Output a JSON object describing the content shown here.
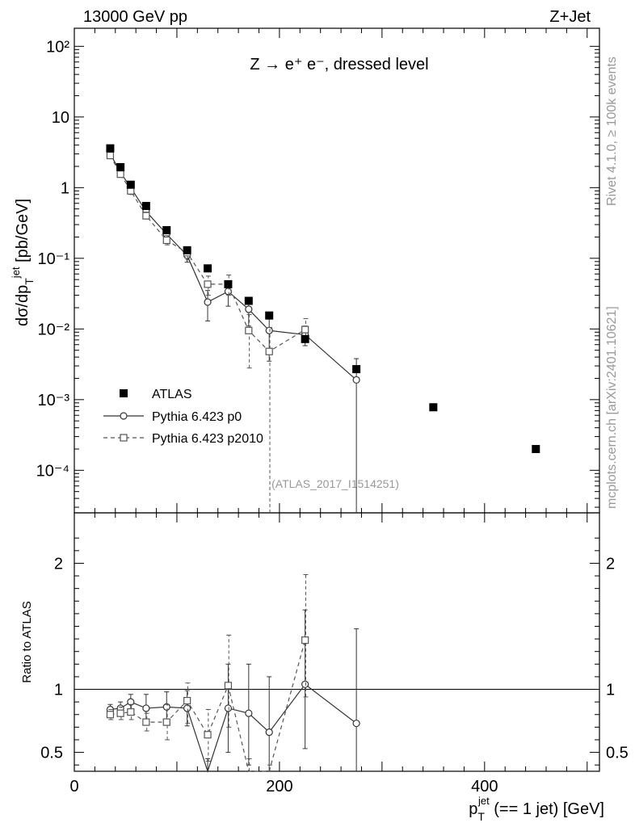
{
  "header": {
    "energy_label": "13000 GeV pp",
    "process_label": "Z+Jet",
    "title": "Z → e⁺ e⁻, dressed level",
    "analysis_id": "(ATLAS_2017_I1514251)",
    "side_label_top": "Rivet 4.1.0, ≥ 100k events",
    "side_label_bottom": "mcplots.cern.ch [arXiv:2401.10621]"
  },
  "chart_data": [
    {
      "type": "scatter",
      "panel": "main",
      "yscale": "log",
      "ylabel": "dσ/dp_T^jet [pb/GeV]",
      "ylim": [
        2.5e-05,
        180
      ],
      "xlim": [
        0,
        512
      ],
      "yticks": [
        {
          "value": 100,
          "label": "10²"
        },
        {
          "value": 10,
          "label": "10"
        },
        {
          "value": 1,
          "label": "1"
        },
        {
          "value": 0.1,
          "label": "10⁻¹"
        },
        {
          "value": 0.01,
          "label": "10⁻²"
        },
        {
          "value": 0.001,
          "label": "10⁻³"
        },
        {
          "value": 0.0001,
          "label": "10⁻⁴"
        }
      ],
      "legend": {
        "position": "bottom-left",
        "entries": [
          "ATLAS",
          "Pythia 6.423 p0",
          "Pythia 6.423 p2010"
        ]
      },
      "series": [
        {
          "name": "ATLAS",
          "style": "filled-square",
          "x": [
            35,
            45,
            55,
            70,
            90,
            110,
            130,
            150,
            170,
            190,
            225,
            275,
            350,
            450
          ],
          "y": [
            3.6,
            1.95,
            1.1,
            0.55,
            0.25,
            0.13,
            0.072,
            0.043,
            0.025,
            0.0155,
            0.0072,
            0.0027,
            0.00078,
            0.0002
          ]
        },
        {
          "name": "Pythia 6.423 p0",
          "style": "open-circle-solid",
          "x": [
            35,
            45,
            55,
            70,
            90,
            110,
            130,
            150,
            170,
            190,
            225,
            275
          ],
          "y": [
            3.0,
            1.65,
            1.0,
            0.46,
            0.22,
            0.11,
            0.024,
            0.034,
            0.019,
            0.0095,
            0.0083,
            0.0019
          ],
          "err_low": [
            2.8,
            1.5,
            0.9,
            0.41,
            0.19,
            0.088,
            0.013,
            0.021,
            0.011,
            0.0035,
            0.0058,
            1e-06
          ],
          "err_high": [
            3.2,
            1.8,
            1.1,
            0.51,
            0.25,
            0.13,
            0.035,
            0.047,
            0.027,
            0.0155,
            0.011,
            0.0038
          ]
        },
        {
          "name": "Pythia 6.423 p2010",
          "style": "open-square-dashed",
          "x": [
            35,
            45,
            55,
            70,
            90,
            110,
            130,
            150,
            170,
            190,
            225
          ],
          "y": [
            2.85,
            1.55,
            0.9,
            0.4,
            0.18,
            0.12,
            0.043,
            0.043,
            0.0095,
            0.0048,
            0.0098
          ],
          "err_low": [
            2.65,
            1.4,
            0.8,
            0.36,
            0.155,
            0.095,
            0.03,
            0.03,
            0.0028,
            1e-06,
            0.0068
          ],
          "err_high": [
            3.05,
            1.7,
            1.0,
            0.45,
            0.21,
            0.145,
            0.056,
            0.058,
            0.016,
            0.0105,
            0.014
          ]
        }
      ]
    },
    {
      "type": "scatter",
      "panel": "ratio",
      "ylabel": "Ratio to ATLAS",
      "xlabel": "p_T^jet (== 1 jet) [GeV]",
      "xlim": [
        0,
        512
      ],
      "ylim": [
        0.35,
        2.4
      ],
      "xticks": [
        0,
        200,
        400
      ],
      "yticks": [
        0.5,
        1,
        2
      ],
      "reference_line": 1,
      "series": [
        {
          "name": "Pythia 6.423 p0",
          "style": "open-circle-solid",
          "x": [
            35,
            45,
            55,
            70,
            90,
            110,
            130,
            150,
            170,
            190,
            225,
            275
          ],
          "y": [
            0.84,
            0.85,
            0.9,
            0.85,
            0.86,
            0.85,
            0.33,
            0.85,
            0.81,
            0.66,
            1.04,
            0.73
          ],
          "err_low": [
            0.8,
            0.8,
            0.84,
            0.74,
            0.74,
            0.71,
            0.25,
            0.5,
            0.4,
            0.3,
            0.53,
            0.3
          ],
          "err_high": [
            0.88,
            0.9,
            0.96,
            0.96,
            0.98,
            0.99,
            0.45,
            1.2,
            1.2,
            1.1,
            1.63,
            1.48
          ]
        },
        {
          "name": "Pythia 6.423 p2010",
          "style": "open-square-dashed",
          "x": [
            35,
            45,
            55,
            70,
            90,
            110,
            130,
            150,
            170,
            190,
            225
          ],
          "y": [
            0.8,
            0.81,
            0.82,
            0.74,
            0.74,
            0.91,
            0.64,
            1.03,
            0.33,
            0.3,
            1.39
          ],
          "err_low": [
            0.76,
            0.76,
            0.76,
            0.67,
            0.6,
            0.73,
            0.43,
            0.7,
            0.25,
            0.25,
            0.94
          ],
          "err_high": [
            0.84,
            0.86,
            0.88,
            0.81,
            0.88,
            1.05,
            0.84,
            1.43,
            0.45,
            0.4,
            1.91
          ]
        }
      ]
    }
  ]
}
